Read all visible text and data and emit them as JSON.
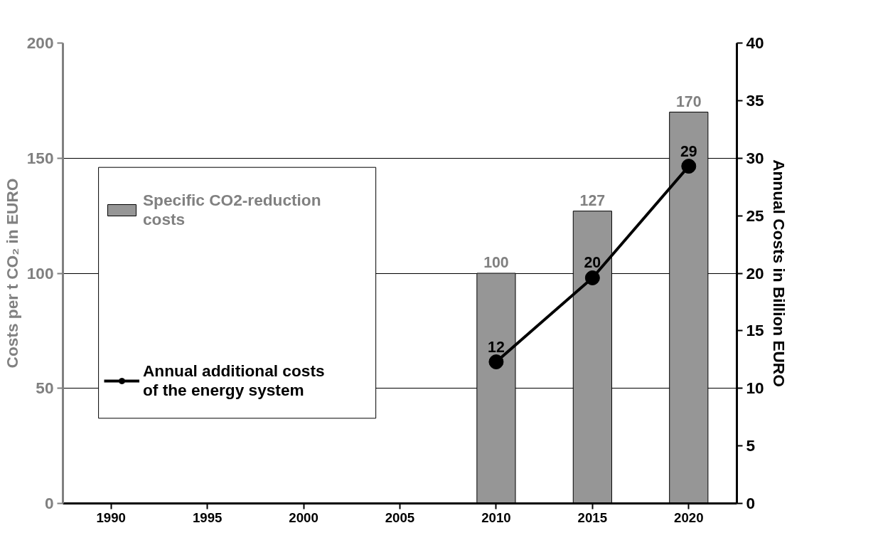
{
  "chart_data": {
    "type": "bar",
    "categories": [
      "1990",
      "1995",
      "2000",
      "2005",
      "2010",
      "2015",
      "2020"
    ],
    "ylabel": "Costs per t CO₂ in EURO",
    "y2label": "Annual Costs in Billion EURO",
    "ylim": [
      0,
      200
    ],
    "yticks": [
      0,
      50,
      100,
      150,
      200
    ],
    "y2lim": [
      0,
      40
    ],
    "y2ticks": [
      0,
      5,
      10,
      15,
      20,
      25,
      30,
      35,
      40
    ],
    "grid": "y",
    "legend": "left",
    "marker": "circle",
    "line_style": "solid",
    "data_labels": true,
    "series": [
      {
        "name": "Specific CO2-reduction costs",
        "color": "#969696",
        "values": [
          null,
          null,
          null,
          null,
          100,
          127,
          170
        ]
      },
      {
        "name": "Annual additional costs of the energy system",
        "type": "line",
        "axis": "y2",
        "color": "#000000",
        "values": [
          null,
          null,
          null,
          null,
          12.3,
          19.6,
          29.3
        ],
        "value_labels": [
          null,
          null,
          null,
          null,
          "12",
          "20",
          "29"
        ]
      }
    ]
  }
}
